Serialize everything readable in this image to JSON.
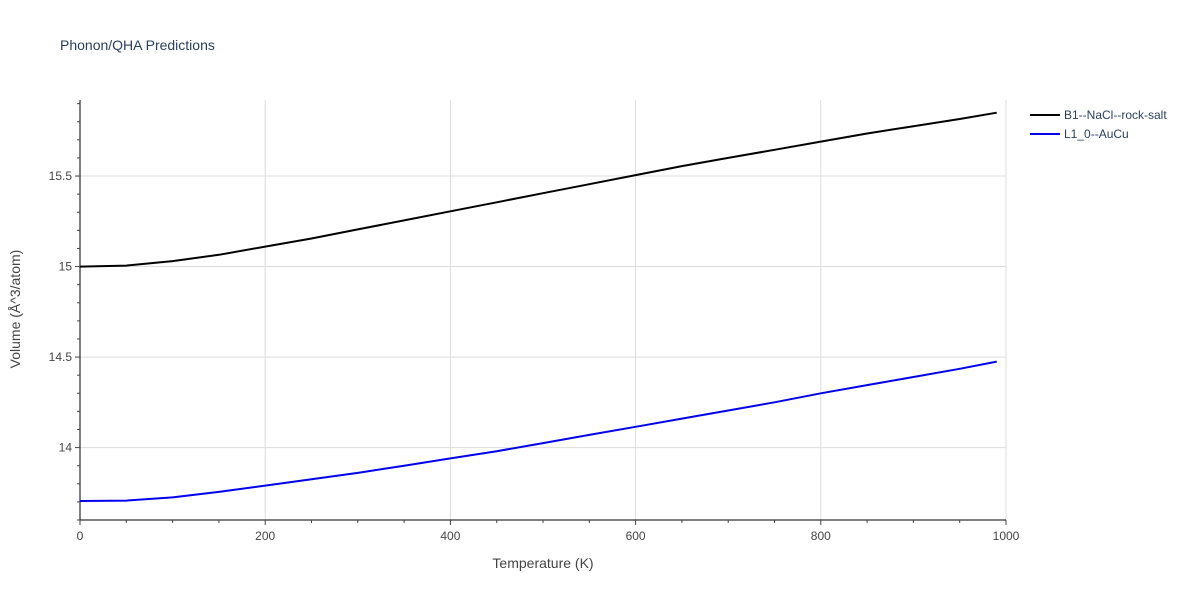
{
  "chart_data": {
    "type": "line",
    "title": "Phonon/QHA Predictions",
    "xlabel": "Temperature (K)",
    "ylabel": "Volume (Å^3/atom)",
    "xlim": [
      0,
      1000
    ],
    "ylim": [
      13.6,
      15.92
    ],
    "x_ticks": [
      0,
      200,
      400,
      600,
      800,
      1000
    ],
    "y_ticks": [
      14,
      14.5,
      15,
      15.5
    ],
    "x_tick_labels": [
      "0",
      "200",
      "400",
      "600",
      "800",
      "1000"
    ],
    "y_tick_labels": [
      "14",
      "14.5",
      "15",
      "15.5"
    ],
    "grid": true,
    "legend_position": "top-right",
    "series": [
      {
        "name": "B1--NaCl--rock-salt",
        "color": "#000000",
        "x": [
          0,
          50,
          100,
          150,
          200,
          250,
          300,
          350,
          400,
          450,
          500,
          550,
          600,
          650,
          700,
          750,
          800,
          850,
          900,
          950,
          990
        ],
        "y": [
          15.0,
          15.005,
          15.03,
          15.065,
          15.11,
          15.155,
          15.205,
          15.255,
          15.305,
          15.355,
          15.405,
          15.455,
          15.505,
          15.555,
          15.6,
          15.645,
          15.69,
          15.735,
          15.775,
          15.815,
          15.85
        ]
      },
      {
        "name": "L1_0--AuCu",
        "color": "#0000ee",
        "x": [
          0,
          50,
          100,
          150,
          200,
          250,
          300,
          350,
          400,
          450,
          500,
          550,
          600,
          650,
          700,
          750,
          800,
          850,
          900,
          950,
          990
        ],
        "y": [
          13.705,
          13.707,
          13.725,
          13.755,
          13.79,
          13.825,
          13.86,
          13.9,
          13.94,
          13.98,
          14.025,
          14.07,
          14.115,
          14.16,
          14.205,
          14.25,
          14.3,
          14.345,
          14.39,
          14.435,
          14.475
        ]
      }
    ]
  }
}
